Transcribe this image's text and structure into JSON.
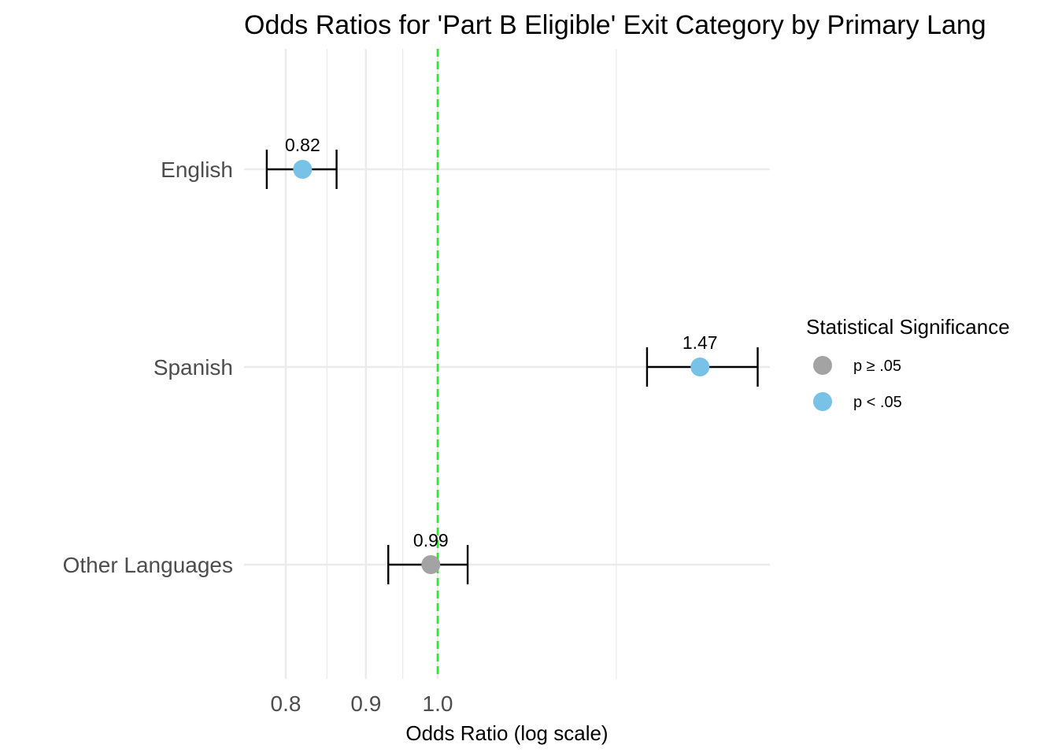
{
  "chart_data": {
    "type": "scatter",
    "title": "Odds Ratios for 'Part B Eligible' Exit Category by Primary Lang",
    "xlabel": "Odds Ratio (log scale)",
    "ylabel": "",
    "x_scale": "log",
    "xlim": [
      0.76,
      1.65
    ],
    "x_ticks": [
      {
        "value": 0.8,
        "label": "0.8"
      },
      {
        "value": 0.9,
        "label": "0.9"
      },
      {
        "value": 1.0,
        "label": "1.0"
      }
    ],
    "x_minor_gridlines": [
      0.85,
      0.95,
      1.3
    ],
    "grid": true,
    "reference_line": {
      "x": 1.0,
      "style": "dashed",
      "color": "#22ee22"
    },
    "categories": [
      "English",
      "Spanish",
      "Other Languages"
    ],
    "points": [
      {
        "category": "English",
        "estimate": 0.82,
        "lower": 0.778,
        "upper": 0.862,
        "label": "0.82",
        "significance": "p < .05"
      },
      {
        "category": "Spanish",
        "estimate": 1.47,
        "lower": 1.36,
        "upper": 1.6,
        "label": "1.47",
        "significance": "p < .05"
      },
      {
        "category": "Other Languages",
        "estimate": 0.99,
        "lower": 0.93,
        "upper": 1.045,
        "label": "0.99",
        "significance": "p ≥ .05"
      }
    ],
    "legend": {
      "title": "Statistical Significance",
      "position": "right",
      "items": [
        {
          "label": "p ≥ .05",
          "color": "#a3a3a3"
        },
        {
          "label": "p < .05",
          "color": "#77c2e6"
        }
      ]
    },
    "colors": {
      "gridline": "#ebebeb",
      "errorbar": "#000000"
    }
  }
}
